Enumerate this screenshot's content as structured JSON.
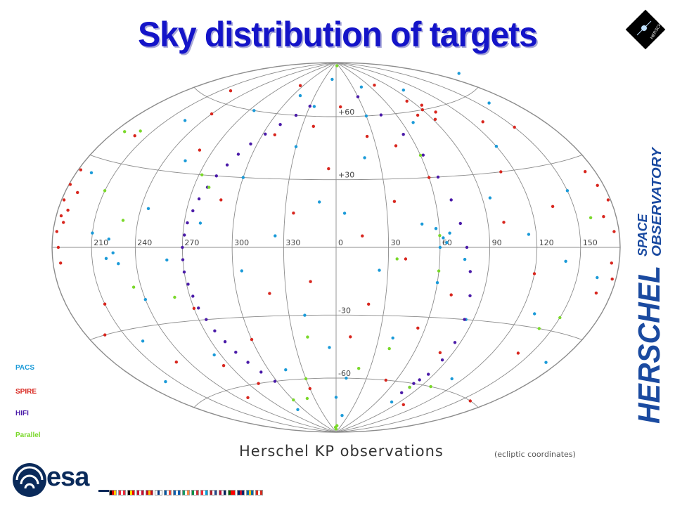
{
  "slide": {
    "title": "Sky distribution of targets",
    "caption": "Herschel KP observations",
    "coord_note": "(ecliptic coordinates)",
    "side_brand_main": "HERSCHEL",
    "side_brand_line1": "SPACE",
    "side_brand_line2": "OBSERVATORY",
    "badge_text": "HERSCHEL",
    "esa_text": "esa"
  },
  "colors": {
    "title": "#1414c8",
    "pacs": "#1a9ad8",
    "spire": "#d8261e",
    "hifi": "#4a1aa8",
    "parallel": "#7ad82a",
    "grid": "#8c8c8c",
    "side_brand": "#1a4aa0"
  },
  "flags": [
    [
      "#000",
      "#d00",
      "#fc0"
    ],
    [
      "#ed2939",
      "#fff",
      "#ed2939"
    ],
    [
      "#000",
      "#fd0",
      "#e00"
    ],
    [
      "#c60c30",
      "#fff",
      "#c60c30"
    ],
    [
      "#c60b1e",
      "#ffc400",
      "#c60b1e"
    ],
    [
      "#fff",
      "#003580",
      "#fff"
    ],
    [
      "#0055a4",
      "#fff",
      "#ef4135"
    ],
    [
      "#0d5eaf",
      "#fff",
      "#0d5eaf"
    ],
    [
      "#169b62",
      "#fff",
      "#ff883e"
    ],
    [
      "#009246",
      "#fff",
      "#ce2b37"
    ],
    [
      "#ed2939",
      "#fff",
      "#00a1de"
    ],
    [
      "#ae1c28",
      "#fff",
      "#21468b"
    ],
    [
      "#ba0c2f",
      "#fff",
      "#00205b"
    ],
    [
      "#006600",
      "#ff0000",
      "#ff0000"
    ],
    [
      "#012169",
      "#c8102e",
      "#012169"
    ],
    [
      "#006aa7",
      "#fecc00",
      "#006aa7"
    ],
    [
      "#d52b1e",
      "#fff",
      "#d52b1e"
    ]
  ],
  "chart_data": {
    "type": "scatter",
    "projection": "Hammer-Aitoff (all-sky)",
    "coordinates": "ecliptic",
    "longitude_tick_labels": [
      "210",
      "240",
      "270",
      "300",
      "330",
      "0",
      "30",
      "60",
      "90",
      "120",
      "150"
    ],
    "latitude_tick_labels": [
      "+60",
      "+30",
      "-30",
      "-60"
    ],
    "grid": true,
    "legend_placement": "bottom-left",
    "series": [
      {
        "name": "PACS",
        "color": "#1a9ad8",
        "points_lonlat": [
          [
            200,
            65
          ],
          [
            160,
            55
          ],
          [
            100,
            70
          ],
          [
            45,
            75
          ],
          [
            20,
            40
          ],
          [
            -10,
            20
          ],
          [
            -30,
            45
          ],
          [
            -60,
            30
          ],
          [
            -80,
            10
          ],
          [
            -100,
            -5
          ],
          [
            -120,
            -20
          ],
          [
            -140,
            -35
          ],
          [
            -160,
            -50
          ],
          [
            170,
            -40
          ],
          [
            130,
            -25
          ],
          [
            110,
            -55
          ],
          [
            80,
            -70
          ],
          [
            60,
            -15
          ],
          [
            40,
            -40
          ],
          [
            10,
            -60
          ],
          [
            -20,
            -30
          ],
          [
            -45,
            -55
          ],
          [
            -70,
            -75
          ],
          [
            -95,
            -45
          ],
          [
            -115,
            15
          ],
          [
            -150,
            5
          ],
          [
            -168,
            25
          ],
          [
            150,
            20
          ],
          [
            120,
            40
          ],
          [
            95,
            20
          ],
          [
            70,
            55
          ],
          [
            50,
            10
          ],
          [
            25,
            -10
          ],
          [
            5,
            15
          ],
          [
            -5,
            -45
          ],
          [
            -35,
            5
          ],
          [
            -55,
            -10
          ],
          [
            -85,
            60
          ],
          [
            -105,
            35
          ],
          [
            -135,
            50
          ],
          [
            165,
            -10
          ],
          [
            140,
            -5
          ],
          [
            115,
            5
          ],
          [
            85,
            -30
          ],
          [
            75,
            -5
          ],
          [
            62,
            4
          ],
          [
            64,
            2
          ],
          [
            66,
            6
          ],
          [
            60,
            0
          ],
          [
            58,
            8
          ],
          [
            -135,
            -2
          ],
          [
            -138,
            3
          ],
          [
            -140,
            -4
          ],
          [
            -132,
            -6
          ],
          [
            30,
            60
          ],
          [
            -25,
            65
          ],
          [
            -50,
            70
          ],
          [
            0,
            -70
          ],
          [
            15,
            -80
          ],
          [
            -10,
            80
          ]
        ]
      },
      {
        "name": "SPIRE",
        "color": "#d8261e",
        "points_lonlat": [
          [
            -178,
            15
          ],
          [
            -176,
            10
          ],
          [
            -177,
            5
          ],
          [
            -179,
            20
          ],
          [
            -175,
            0
          ],
          [
            -174,
            -5
          ],
          [
            -178,
            25
          ],
          [
            -172,
            12
          ],
          [
            -170,
            18
          ],
          [
            -173,
            8
          ],
          [
            178,
            15
          ],
          [
            176,
            5
          ],
          [
            175,
            20
          ],
          [
            174,
            -5
          ],
          [
            177,
            -10
          ],
          [
            172,
            25
          ],
          [
            170,
            10
          ],
          [
            168,
            -15
          ],
          [
            90,
            60
          ],
          [
            95,
            62
          ],
          [
            100,
            58
          ],
          [
            92,
            55
          ],
          [
            85,
            65
          ],
          [
            80,
            58
          ],
          [
            150,
            45
          ],
          [
            130,
            50
          ],
          [
            110,
            30
          ],
          [
            100,
            10
          ],
          [
            70,
            -20
          ],
          [
            55,
            -35
          ],
          [
            35,
            20
          ],
          [
            15,
            5
          ],
          [
            -5,
            35
          ],
          [
            -25,
            15
          ],
          [
            -40,
            -20
          ],
          [
            -60,
            -40
          ],
          [
            -80,
            -60
          ],
          [
            -100,
            40
          ],
          [
            -120,
            55
          ],
          [
            -140,
            65
          ],
          [
            -160,
            40
          ],
          [
            -150,
            -20
          ],
          [
            -130,
            -45
          ],
          [
            -110,
            -65
          ],
          [
            -90,
            -25
          ],
          [
            -70,
            20
          ],
          [
            -50,
            50
          ],
          [
            20,
            -25
          ],
          [
            40,
            -5
          ],
          [
            60,
            30
          ],
          [
            80,
            -45
          ],
          [
            100,
            -70
          ],
          [
            120,
            -10
          ],
          [
            140,
            -40
          ],
          [
            160,
            -60
          ],
          [
            25,
            50
          ],
          [
            45,
            45
          ],
          [
            -15,
            -15
          ],
          [
            -30,
            -65
          ],
          [
            10,
            -40
          ],
          [
            -65,
            75
          ],
          [
            70,
            75
          ],
          [
            -165,
            -30
          ],
          [
            135,
            15
          ],
          [
            -95,
            -50
          ],
          [
            50,
            -60
          ],
          [
            -20,
            55
          ],
          [
            5,
            65
          ]
        ]
      },
      {
        "name": "HIFI",
        "color": "#4a1aa8",
        "points_lonlat": [
          [
            -30,
            65
          ],
          [
            -40,
            60
          ],
          [
            -50,
            55
          ],
          [
            -58,
            50
          ],
          [
            -65,
            45
          ],
          [
            -70,
            40
          ],
          [
            -74,
            35
          ],
          [
            -78,
            30
          ],
          [
            -81,
            25
          ],
          [
            -84,
            20
          ],
          [
            -86,
            15
          ],
          [
            -88,
            10
          ],
          [
            -89,
            5
          ],
          [
            -90,
            0
          ],
          [
            -90,
            -5
          ],
          [
            -90,
            -10
          ],
          [
            -89,
            -15
          ],
          [
            -88,
            -20
          ],
          [
            -87,
            -25
          ],
          [
            -85,
            -30
          ],
          [
            -83,
            -35
          ],
          [
            -80,
            -40
          ],
          [
            -77,
            -45
          ],
          [
            -73,
            -50
          ],
          [
            -68,
            -55
          ],
          [
            -62,
            -60
          ],
          [
            30,
            70
          ],
          [
            45,
            60
          ],
          [
            55,
            50
          ],
          [
            62,
            40
          ],
          [
            66,
            30
          ],
          [
            70,
            20
          ],
          [
            73,
            10
          ],
          [
            76,
            0
          ],
          [
            79,
            -10
          ],
          [
            82,
            -20
          ],
          [
            84,
            -30
          ],
          [
            86,
            -40
          ],
          [
            86,
            -48
          ],
          [
            85,
            -55
          ],
          [
            80,
            -60
          ],
          [
            78,
            -65
          ],
          [
            80,
            -62
          ],
          [
            82,
            -58
          ]
        ]
      },
      {
        "name": "Parallel",
        "color": "#7ad82a",
        "points_lonlat": [
          [
            -172,
            40
          ],
          [
            -160,
            42
          ],
          [
            -130,
            10
          ],
          [
            -125,
            -15
          ],
          [
            -88,
            30
          ],
          [
            -80,
            25
          ],
          [
            -100,
            -20
          ],
          [
            -60,
            -70
          ],
          [
            -40,
            -70
          ],
          [
            0,
            -88
          ],
          [
            5,
            -86
          ],
          [
            -5,
            -87
          ],
          [
            35,
            -5
          ],
          [
            40,
            -45
          ],
          [
            20,
            -55
          ],
          [
            60,
            -10
          ],
          [
            60,
            5
          ],
          [
            140,
            -30
          ],
          [
            150,
            -25
          ],
          [
            160,
            10
          ],
          [
            100,
            -60
          ],
          [
            80,
            -62
          ],
          [
            -20,
            -40
          ],
          [
            10,
            88
          ],
          [
            -150,
            20
          ],
          [
            60,
            40
          ],
          [
            -30,
            -60
          ]
        ]
      }
    ]
  },
  "legend": {
    "items": [
      {
        "label": "PACS",
        "color": "#1a9ad8"
      },
      {
        "label": "SPIRE",
        "color": "#d8261e"
      },
      {
        "label": "HIFI",
        "color": "#4a1aa8"
      },
      {
        "label": "Parallel",
        "color": "#7ad82a"
      }
    ]
  }
}
